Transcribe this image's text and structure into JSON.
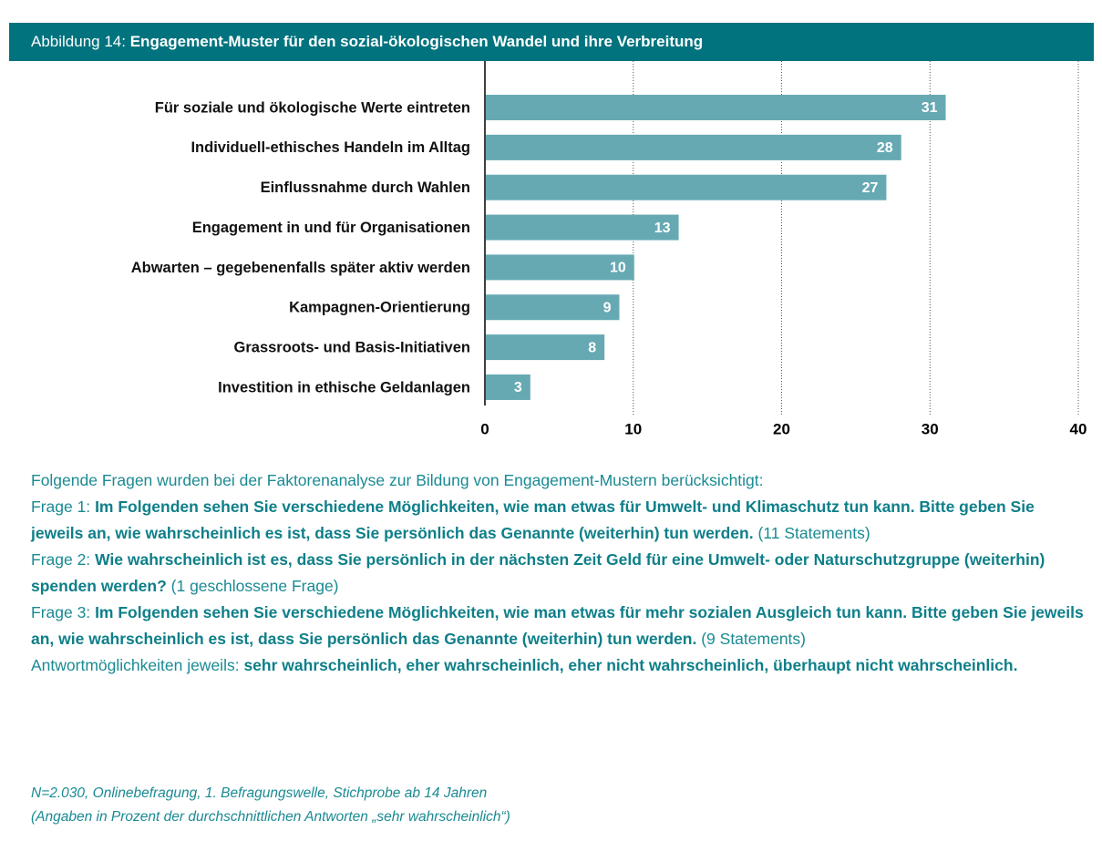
{
  "header": {
    "figure_label": "Abbildung 14:",
    "title": "Engagement-Muster für den sozial-ökologischen Wandel und ihre Verbreitung"
  },
  "chart_data": {
    "type": "barh",
    "categories": [
      "Für soziale und ökologische Werte eintreten",
      "Individuell-ethisches Handeln im Alltag",
      "Einflussnahme durch Wahlen",
      "Engagement in und für Organisationen",
      "Abwarten – gegebenenfalls später aktiv werden",
      "Kampagnen-Orientierung",
      "Grassroots- und Basis-Initiativen",
      "Investition in ethische Geldanlagen"
    ],
    "values": [
      31,
      28,
      27,
      13,
      10,
      9,
      8,
      3
    ],
    "color": "#66a9b3",
    "xlim": [
      0,
      40
    ],
    "xticks": [
      0,
      10,
      20,
      30,
      40
    ],
    "grid": true
  },
  "notes": {
    "intro": "Folgende Fragen wurden bei der Faktorenanalyse zur Bildung von Engagement-Mustern berücksichtigt:",
    "questions": [
      {
        "label": "Frage 1:",
        "text": "Im Folgenden sehen Sie verschiedene Möglichkeiten, wie man etwas für Umwelt- und Klimaschutz tun kann. Bitte geben Sie jeweils an, wie wahrscheinlich es ist, dass Sie persönlich das Genannte (weiterhin) tun werden.",
        "suffix": "(11 Statements)"
      },
      {
        "label": "Frage 2:",
        "text": "Wie wahrscheinlich ist es, dass Sie persönlich in der nächsten Zeit Geld für eine Umwelt- oder Naturschutzgruppe (weiterhin) spenden werden?",
        "suffix": "(1 geschlossene Frage)"
      },
      {
        "label": "Frage 3:",
        "text": "Im Folgenden sehen Sie verschiedene Möglichkeiten, wie man etwas für mehr sozialen Ausgleich tun kann. Bitte geben Sie jeweils an, wie wahrscheinlich es ist, dass Sie persönlich das Genannte (weiterhin) tun werden.",
        "suffix": "(9 Statements)"
      }
    ],
    "answers_label": "Antwortmöglichkeiten jeweils:",
    "answers": "sehr wahrscheinlich, eher wahrscheinlich, eher nicht wahrscheinlich, überhaupt nicht wahrscheinlich."
  },
  "footnote": [
    "N=2.030, Onlinebefragung, 1. Befragungswelle, Stichprobe ab 14 Jahren",
    "(Angaben in Prozent der durchschnittlichen Antworten „sehr wahrscheinlich“)"
  ]
}
